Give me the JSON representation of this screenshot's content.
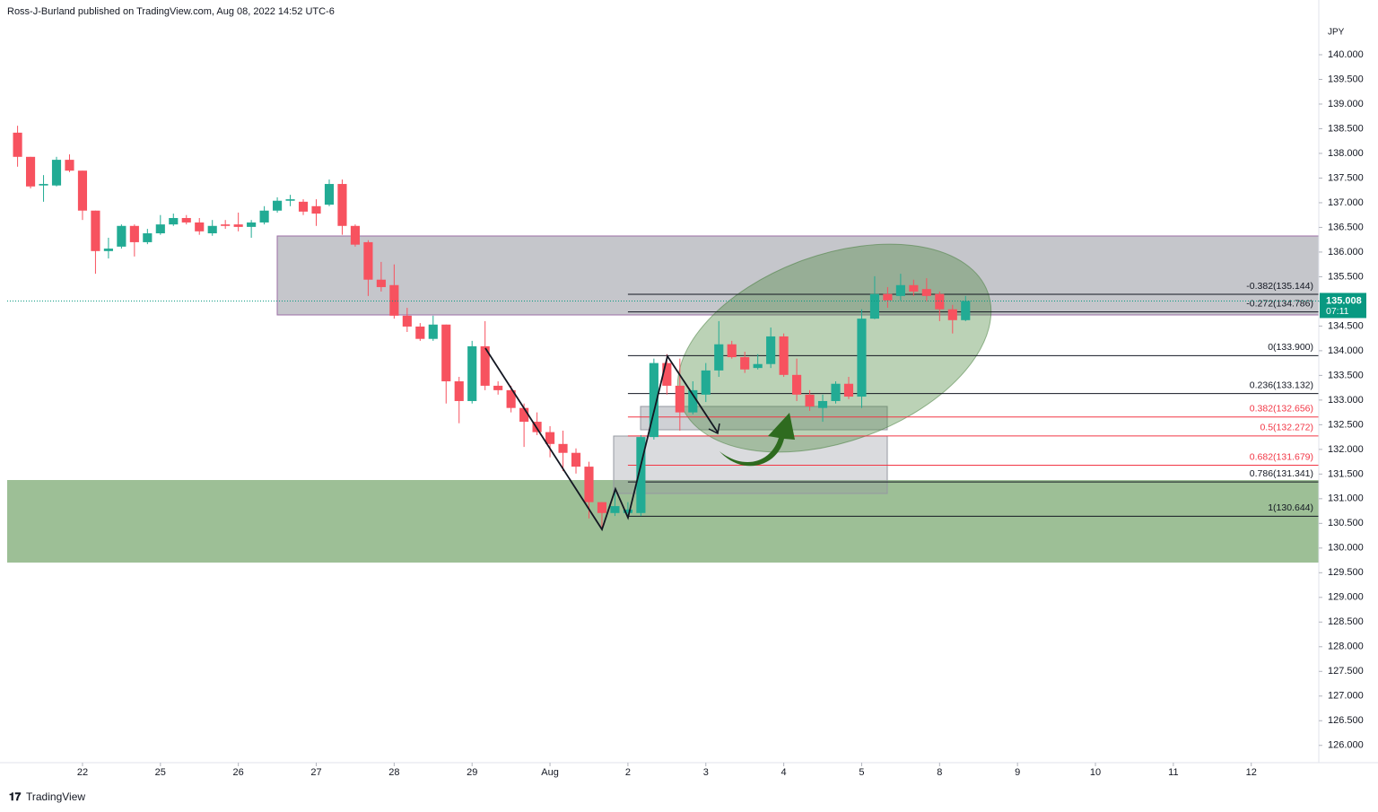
{
  "header": "Ross-J-Burland published on TradingView.com, Aug 08, 2022 14:52 UTC-6",
  "footer": "TradingView",
  "chart_data": {
    "type": "candlestick",
    "y_unit": "JPY",
    "up_color": "#22ab94",
    "down_color": "#f7525f",
    "grid": false,
    "last_price": 135.008,
    "countdown": "07:11",
    "last_color": "#089981",
    "xlim": [
      -5.8,
      95.2
    ],
    "ylim": [
      125.65,
      140.6
    ],
    "xticks": [
      {
        "value": 0,
        "label": "22"
      },
      {
        "value": 6,
        "label": "25"
      },
      {
        "value": 12,
        "label": "26"
      },
      {
        "value": 18,
        "label": "27"
      },
      {
        "value": 24,
        "label": "28"
      },
      {
        "value": 30,
        "label": "29"
      },
      {
        "value": 36,
        "label": "Aug"
      },
      {
        "value": 42,
        "label": "2"
      },
      {
        "value": 48,
        "label": "3"
      },
      {
        "value": 54,
        "label": "4"
      },
      {
        "value": 60,
        "label": "5"
      },
      {
        "value": 66,
        "label": "8"
      },
      {
        "value": 72,
        "label": "9"
      },
      {
        "value": 78,
        "label": "10"
      },
      {
        "value": 84,
        "label": "11"
      },
      {
        "value": 90,
        "label": "12"
      }
    ],
    "yticks": [
      {
        "value": 126,
        "label": "126.000"
      },
      {
        "value": 126.5,
        "label": "126.500"
      },
      {
        "value": 127,
        "label": "127.000"
      },
      {
        "value": 127.5,
        "label": "127.500"
      },
      {
        "value": 128,
        "label": "128.000"
      },
      {
        "value": 128.5,
        "label": "128.500"
      },
      {
        "value": 129,
        "label": "129.000"
      },
      {
        "value": 129.5,
        "label": "129.500"
      },
      {
        "value": 130,
        "label": "130.000"
      },
      {
        "value": 130.5,
        "label": "130.500"
      },
      {
        "value": 131,
        "label": "131.000"
      },
      {
        "value": 131.5,
        "label": "131.500"
      },
      {
        "value": 132,
        "label": "132.000"
      },
      {
        "value": 132.5,
        "label": "132.500"
      },
      {
        "value": 133,
        "label": "133.000"
      },
      {
        "value": 133.5,
        "label": "133.500"
      },
      {
        "value": 134,
        "label": "134.000"
      },
      {
        "value": 134.5,
        "label": "134.500"
      },
      {
        "value": 135,
        "label": "135.000"
      },
      {
        "value": 135.5,
        "label": "135.500"
      },
      {
        "value": 136,
        "label": "136.000"
      },
      {
        "value": 136.5,
        "label": "136.500"
      },
      {
        "value": 137,
        "label": "137.000"
      },
      {
        "value": 137.5,
        "label": "137.500"
      },
      {
        "value": 138,
        "label": "138.000"
      },
      {
        "value": 138.5,
        "label": "138.500"
      },
      {
        "value": 139,
        "label": "139.000"
      },
      {
        "value": 139.5,
        "label": "139.500"
      },
      {
        "value": 140,
        "label": "140.000"
      }
    ],
    "fib_levels": [
      {
        "label": "-0.382(135.144)",
        "value": 135.144,
        "color": "#131722"
      },
      {
        "label": "-0.272(134.786)",
        "value": 134.786,
        "color": "#131722"
      },
      {
        "label": "0(133.900)",
        "value": 133.9,
        "color": "#131722"
      },
      {
        "label": "0.236(133.132)",
        "value": 133.132,
        "color": "#131722"
      },
      {
        "label": "0.382(132.656)",
        "value": 132.656,
        "color": "#f23645"
      },
      {
        "label": "0.5(132.272)",
        "value": 132.272,
        "color": "#f23645"
      },
      {
        "label": "0.682(131.679)",
        "value": 131.679,
        "color": "#f23645"
      },
      {
        "label": "0.786(131.341)",
        "value": 131.341,
        "color": "#131722"
      },
      {
        "label": "1(130.644)",
        "value": 130.644,
        "color": "#131722"
      }
    ],
    "x": [
      -5,
      -4,
      -3,
      -2,
      -1,
      0,
      1,
      2,
      3,
      4,
      5,
      6,
      7,
      8,
      9,
      10,
      11,
      12,
      13,
      14,
      15,
      16,
      17,
      18,
      19,
      20,
      21,
      22,
      23,
      24,
      25,
      26,
      27,
      28,
      29,
      30,
      31,
      32,
      33,
      34,
      35,
      36,
      37,
      38,
      39,
      40,
      41,
      42,
      43,
      44,
      45,
      46,
      47,
      48,
      49,
      50,
      51,
      52,
      53,
      54,
      55,
      56,
      57,
      58,
      59,
      60,
      61,
      62,
      63,
      64,
      65,
      66,
      67,
      68
    ],
    "open": [
      138.42,
      137.93,
      137.35,
      137.35,
      137.87,
      137.65,
      136.84,
      136.02,
      136.11,
      136.53,
      136.2,
      136.38,
      136.56,
      136.69,
      136.6,
      136.38,
      136.56,
      136.56,
      136.51,
      136.6,
      136.84,
      137.04,
      137.02,
      136.93,
      136.96,
      137.38,
      136.53,
      136.2,
      135.44,
      135.33,
      134.71,
      134.49,
      134.24,
      134.53,
      133.38,
      132.98,
      134.09,
      133.29,
      133.2,
      132.84,
      132.56,
      132.35,
      132.11,
      131.93,
      131.65,
      130.93,
      130.71,
      130.71,
      130.71,
      132.25,
      133.75,
      133.29,
      132.75,
      133.11,
      133.6,
      134.13,
      133.87,
      133.65,
      133.73,
      134.29,
      133.51,
      133.11,
      132.84,
      132.98,
      133.33,
      133.07,
      134.65,
      135.15,
      135.11,
      135.33,
      135.25,
      135.15,
      134.84,
      134.62
    ],
    "high": [
      138.56,
      137.93,
      137.56,
      137.93,
      137.98,
      137.65,
      136.84,
      136.29,
      136.56,
      136.56,
      136.47,
      136.75,
      136.78,
      136.75,
      136.69,
      136.65,
      136.65,
      136.8,
      136.65,
      136.93,
      137.11,
      137.16,
      137.07,
      137.07,
      137.47,
      137.47,
      136.56,
      136.24,
      135.8,
      135.75,
      134.87,
      134.56,
      134.71,
      134.53,
      133.47,
      134.2,
      134.6,
      133.38,
      133.29,
      132.93,
      132.75,
      132.47,
      132.38,
      132.02,
      131.75,
      130.93,
      131.2,
      130.93,
      132.29,
      133.84,
      133.93,
      133.84,
      133.38,
      133.75,
      134.6,
      134.2,
      133.98,
      133.93,
      134.47,
      134.35,
      133.84,
      133.2,
      133.11,
      133.38,
      133.47,
      134.84,
      135.51,
      135.29,
      135.56,
      135.44,
      135.47,
      135.2,
      134.93,
      135.11
    ],
    "low": [
      137.73,
      137.29,
      137.02,
      137.33,
      137.62,
      136.65,
      135.56,
      135.87,
      136.07,
      135.91,
      136.16,
      136.35,
      136.53,
      136.56,
      136.35,
      136.33,
      136.47,
      136.42,
      136.29,
      136.56,
      136.8,
      136.93,
      136.75,
      136.53,
      136.93,
      136.35,
      136.11,
      135.11,
      135.2,
      134.65,
      134.38,
      134.2,
      134.2,
      132.93,
      132.53,
      132.93,
      133.2,
      133.11,
      132.75,
      132.05,
      132.29,
      131.84,
      131.56,
      131.51,
      130.6,
      130.38,
      130.65,
      130.62,
      130.65,
      132.2,
      133.11,
      132.38,
      132.71,
      132.96,
      133.47,
      133.84,
      133.55,
      133.62,
      133.65,
      133.47,
      132.98,
      132.78,
      132.56,
      132.93,
      133.02,
      132.84,
      134.64,
      134.87,
      135.02,
      135.11,
      135.0,
      134.6,
      134.35,
      134.6
    ],
    "close": [
      137.93,
      137.33,
      137.38,
      137.87,
      137.65,
      136.84,
      136.02,
      136.07,
      136.53,
      136.2,
      136.38,
      136.56,
      136.69,
      136.6,
      136.42,
      136.53,
      136.53,
      136.51,
      136.6,
      136.84,
      137.04,
      137.07,
      136.82,
      136.78,
      137.38,
      136.53,
      136.15,
      135.44,
      135.29,
      134.71,
      134.49,
      134.24,
      134.53,
      133.38,
      132.98,
      134.09,
      133.29,
      133.2,
      132.84,
      132.56,
      132.35,
      132.11,
      131.93,
      131.65,
      130.93,
      130.71,
      130.85,
      130.78,
      132.25,
      133.75,
      133.29,
      132.75,
      133.2,
      133.6,
      134.13,
      133.87,
      133.62,
      133.73,
      134.29,
      133.51,
      133.11,
      132.87,
      132.98,
      133.33,
      133.07,
      134.65,
      135.15,
      135.02,
      135.33,
      135.2,
      135.11,
      134.84,
      134.62,
      135.008
    ]
  }
}
